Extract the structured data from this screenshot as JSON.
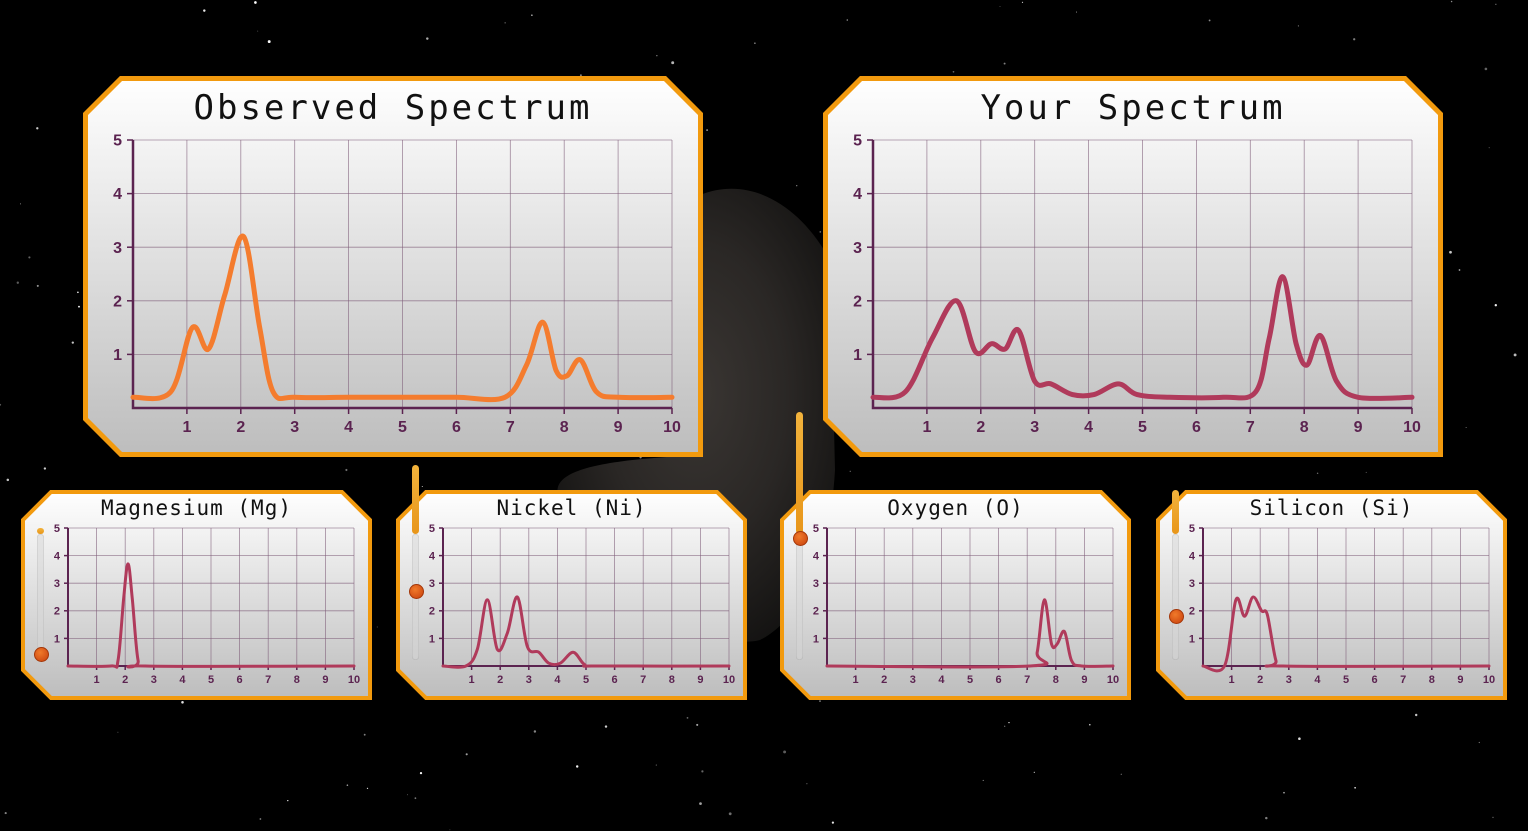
{
  "colors": {
    "frame_border": "#f29a0e",
    "panel_top": "#ffffff",
    "panel_bottom": "#bdbdbd",
    "grid": "#7d5b78",
    "axis": "#5b2350",
    "observed_line": "#f47c2e",
    "model_line": "#b03a5b"
  },
  "axis": {
    "x_ticks": [
      "1",
      "2",
      "3",
      "4",
      "5",
      "6",
      "7",
      "8",
      "9",
      "10"
    ],
    "y_ticks": [
      "1",
      "2",
      "3",
      "4",
      "5"
    ],
    "xlim": [
      0,
      10
    ],
    "ylim": [
      0,
      5
    ]
  },
  "panels": {
    "observed": {
      "title": "Observed Spectrum"
    },
    "yours": {
      "title": "Your Spectrum"
    },
    "elements": [
      {
        "title": "Magnesium (Mg)",
        "slider_level": 0.05
      },
      {
        "title": "Nickel (Ni)",
        "slider_level": 0.55
      },
      {
        "title": "Oxygen (O)",
        "slider_level": 0.97
      },
      {
        "title": "Silicon (Si)",
        "slider_level": 0.35
      }
    ]
  },
  "chart_data": [
    {
      "type": "line",
      "title": "Observed Spectrum",
      "xlim": [
        0,
        10
      ],
      "ylim": [
        0,
        5
      ],
      "x": [
        0,
        0.7,
        1.1,
        1.4,
        1.7,
        2.05,
        2.35,
        2.6,
        3,
        4,
        5,
        6,
        6.9,
        7.3,
        7.6,
        7.85,
        8.05,
        8.3,
        8.6,
        9,
        10
      ],
      "y": [
        0.2,
        0.3,
        1.5,
        1.1,
        2.1,
        3.2,
        1.5,
        0.3,
        0.2,
        0.2,
        0.2,
        0.2,
        0.2,
        0.8,
        1.6,
        0.7,
        0.6,
        0.9,
        0.3,
        0.2,
        0.2
      ]
    },
    {
      "type": "line",
      "title": "Your Spectrum",
      "xlim": [
        0,
        10
      ],
      "ylim": [
        0,
        5
      ],
      "x": [
        0,
        0.6,
        1.1,
        1.55,
        1.9,
        2.2,
        2.45,
        2.7,
        3.0,
        3.3,
        3.7,
        4.1,
        4.55,
        4.9,
        5.5,
        6.5,
        7.1,
        7.35,
        7.6,
        7.85,
        8.05,
        8.3,
        8.6,
        9,
        10
      ],
      "y": [
        0.2,
        0.3,
        1.3,
        2.0,
        1.05,
        1.2,
        1.1,
        1.45,
        0.5,
        0.45,
        0.25,
        0.25,
        0.45,
        0.25,
        0.2,
        0.2,
        0.3,
        1.3,
        2.45,
        1.2,
        0.8,
        1.35,
        0.5,
        0.2,
        0.2
      ]
    },
    {
      "type": "line",
      "title": "Magnesium (Mg)",
      "xlim": [
        0,
        10
      ],
      "ylim": [
        0,
        5
      ],
      "x": [
        0,
        1.5,
        1.75,
        1.95,
        2.1,
        2.25,
        2.45,
        2.7,
        10
      ],
      "y": [
        0,
        0,
        0.2,
        2.5,
        3.7,
        2.4,
        0.2,
        0,
        0
      ]
    },
    {
      "type": "line",
      "title": "Nickel (Ni)",
      "xlim": [
        0,
        10
      ],
      "ylim": [
        0,
        5
      ],
      "x": [
        0,
        0.8,
        1.2,
        1.55,
        1.9,
        2.25,
        2.6,
        2.95,
        3.35,
        3.7,
        4.1,
        4.55,
        4.95,
        5.4,
        10
      ],
      "y": [
        0,
        0,
        0.6,
        2.4,
        0.6,
        1.2,
        2.5,
        0.7,
        0.5,
        0.1,
        0.1,
        0.5,
        0.05,
        0,
        0
      ]
    },
    {
      "type": "line",
      "title": "Oxygen (O)",
      "xlim": [
        0,
        10
      ],
      "ylim": [
        0,
        5
      ],
      "x": [
        0,
        7.1,
        7.35,
        7.6,
        7.85,
        8.05,
        8.3,
        8.55,
        8.9,
        10
      ],
      "y": [
        0,
        0,
        0.5,
        2.4,
        0.8,
        0.8,
        1.25,
        0.2,
        0,
        0
      ]
    },
    {
      "type": "line",
      "title": "Silicon (Si)",
      "xlim": [
        0,
        10
      ],
      "ylim": [
        0,
        5
      ],
      "x": [
        0,
        0.75,
        1.15,
        1.45,
        1.75,
        2.05,
        2.25,
        2.55,
        2.8,
        10
      ],
      "y": [
        0,
        0,
        2.4,
        1.8,
        2.5,
        2.0,
        1.85,
        0.2,
        0,
        0
      ]
    }
  ]
}
